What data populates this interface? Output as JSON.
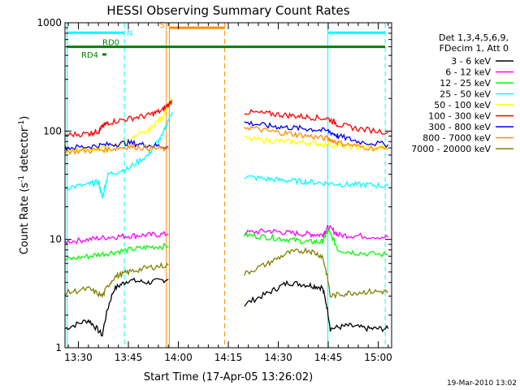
{
  "chart_data": {
    "type": "line",
    "title": "HESSI Observing Summary Count Rates",
    "xlabel": "Start Time (17-Apr-05 13:26:02)",
    "ylabel": "Count Rate (s⁻¹ detector⁻¹)",
    "ylabel_parts": {
      "base": "Count Rate (s",
      "sup1": "-1",
      "mid": " detector",
      "sup2": "-1",
      "end": ")"
    },
    "yscale": "log",
    "ylim": [
      1,
      1000
    ],
    "xlim_minutes": [
      13.433,
      15.067
    ],
    "x_ticks": [
      {
        "label": "13:30",
        "t": 13.5
      },
      {
        "label": "13:45",
        "t": 13.75
      },
      {
        "label": "14:00",
        "t": 14.0
      },
      {
        "label": "14:15",
        "t": 14.25
      },
      {
        "label": "14:30",
        "t": 14.5
      },
      {
        "label": "14:45",
        "t": 14.75
      },
      {
        "label": "15:00",
        "t": 15.0
      }
    ],
    "y_ticks": [
      {
        "label": "1",
        "v": 1
      },
      {
        "label": "10",
        "v": 10
      },
      {
        "label": "100",
        "v": 100
      },
      {
        "label": "1000",
        "v": 1000
      }
    ],
    "legend_header": [
      "Det 1,3,4,5,6,9,",
      "FDecim 1, Att 0"
    ],
    "series": [
      {
        "name": "3 - 6 keV",
        "color": "#000000",
        "points": [
          [
            13.433,
            1.5
          ],
          [
            13.55,
            1.8
          ],
          [
            13.62,
            1.3
          ],
          [
            13.68,
            3.5
          ],
          [
            13.75,
            4.2
          ],
          [
            13.85,
            4.0
          ],
          [
            13.95,
            4.3
          ],
          null,
          [
            14.33,
            2.5
          ],
          [
            14.45,
            3.2
          ],
          [
            14.55,
            4.0
          ],
          [
            14.65,
            3.8
          ],
          [
            14.72,
            3.6
          ],
          [
            14.76,
            1.5
          ],
          [
            14.85,
            1.6
          ],
          [
            14.95,
            1.5
          ],
          [
            15.05,
            1.5
          ]
        ]
      },
      {
        "name": "6 - 12 keV",
        "color": "#ff00ff",
        "points": [
          [
            13.433,
            9.5
          ],
          [
            13.55,
            10
          ],
          [
            13.65,
            10.5
          ],
          [
            13.75,
            10.8
          ],
          [
            13.85,
            11
          ],
          [
            13.95,
            11.2
          ],
          null,
          [
            14.33,
            11.5
          ],
          [
            14.45,
            12
          ],
          [
            14.55,
            11.5
          ],
          [
            14.65,
            11.2
          ],
          [
            14.72,
            11
          ],
          [
            14.75,
            13
          ],
          [
            14.8,
            11
          ],
          [
            14.9,
            10.8
          ],
          [
            15.05,
            10.5
          ]
        ]
      },
      {
        "name": "12 - 25 keV",
        "color": "#00ff00",
        "points": [
          [
            13.433,
            6.5
          ],
          [
            13.55,
            7
          ],
          [
            13.65,
            7.5
          ],
          [
            13.75,
            8
          ],
          [
            13.85,
            8.5
          ],
          [
            13.95,
            8.7
          ],
          null,
          [
            14.33,
            11
          ],
          [
            14.45,
            10.5
          ],
          [
            14.55,
            10
          ],
          [
            14.65,
            9.5
          ],
          [
            14.72,
            9.5
          ],
          [
            14.75,
            12
          ],
          [
            14.8,
            8
          ],
          [
            14.9,
            7.5
          ],
          [
            15.05,
            7.2
          ]
        ]
      },
      {
        "name": "25 - 50 keV",
        "color": "#00ffff",
        "points": [
          [
            13.433,
            30
          ],
          [
            13.55,
            32
          ],
          [
            13.6,
            34
          ],
          [
            13.62,
            24
          ],
          [
            13.65,
            40
          ],
          [
            13.75,
            45
          ],
          [
            13.85,
            60
          ],
          [
            13.92,
            90
          ],
          [
            13.97,
            150
          ],
          null,
          [
            14.33,
            38
          ],
          [
            14.45,
            36
          ],
          [
            14.55,
            35
          ],
          [
            14.65,
            34
          ],
          [
            14.75,
            33
          ],
          [
            14.85,
            32
          ],
          [
            14.95,
            32
          ],
          [
            15.05,
            31
          ]
        ]
      },
      {
        "name": "50 - 100 keV",
        "color": "#ffff00",
        "points": [
          [
            13.433,
            67
          ],
          [
            13.55,
            68
          ],
          [
            13.65,
            70
          ],
          [
            13.75,
            82
          ],
          [
            13.85,
            100
          ],
          [
            13.92,
            135
          ],
          [
            13.97,
            200
          ],
          null,
          [
            14.33,
            85
          ],
          [
            14.45,
            82
          ],
          [
            14.55,
            80
          ],
          [
            14.65,
            78
          ],
          [
            14.75,
            75
          ],
          [
            14.85,
            72
          ],
          [
            14.95,
            71
          ],
          [
            15.05,
            70
          ]
        ]
      },
      {
        "name": "100 - 300 keV",
        "color": "#ff0000",
        "points": [
          [
            13.433,
            92
          ],
          [
            13.55,
            95
          ],
          [
            13.6,
            100
          ],
          [
            13.62,
            110
          ],
          [
            13.65,
            120
          ],
          [
            13.75,
            130
          ],
          [
            13.85,
            140
          ],
          [
            13.92,
            155
          ],
          [
            13.97,
            190
          ],
          null,
          [
            14.33,
            150
          ],
          [
            14.45,
            145
          ],
          [
            14.55,
            140
          ],
          [
            14.65,
            135
          ],
          [
            14.75,
            130
          ],
          [
            14.8,
            115
          ],
          [
            14.9,
            105
          ],
          [
            15.05,
            98
          ]
        ]
      },
      {
        "name": "300 - 800 keV",
        "color": "#0000ff",
        "points": [
          [
            13.433,
            70
          ],
          [
            13.55,
            72
          ],
          [
            13.65,
            75
          ],
          [
            13.75,
            78
          ],
          [
            13.85,
            74
          ],
          [
            13.95,
            72
          ],
          null,
          [
            14.33,
            120
          ],
          [
            14.45,
            112
          ],
          [
            14.55,
            108
          ],
          [
            14.65,
            105
          ],
          [
            14.75,
            100
          ],
          [
            14.8,
            90
          ],
          [
            14.9,
            80
          ],
          [
            15.05,
            75
          ]
        ]
      },
      {
        "name": "800 - 7000 keV",
        "color": "#ff8c00",
        "points": [
          [
            13.433,
            65
          ],
          [
            13.55,
            66
          ],
          [
            13.65,
            68
          ],
          [
            13.75,
            72
          ],
          [
            13.85,
            70
          ],
          [
            13.95,
            68
          ],
          null,
          [
            14.33,
            110
          ],
          [
            14.45,
            100
          ],
          [
            14.55,
            95
          ],
          [
            14.65,
            90
          ],
          [
            14.75,
            85
          ],
          [
            14.8,
            78
          ],
          [
            14.9,
            72
          ],
          [
            15.05,
            68
          ]
        ]
      },
      {
        "name": "7000 - 20000 keV",
        "color": "#808000",
        "points": [
          [
            13.433,
            3.2
          ],
          [
            13.55,
            3.5
          ],
          [
            13.62,
            3.0
          ],
          [
            13.68,
            4.5
          ],
          [
            13.75,
            5.0
          ],
          [
            13.85,
            5.5
          ],
          [
            13.95,
            5.8
          ],
          null,
          [
            14.33,
            4.8
          ],
          [
            14.45,
            6.0
          ],
          [
            14.55,
            7.5
          ],
          [
            14.65,
            8.0
          ],
          [
            14.72,
            7.0
          ],
          [
            14.76,
            3.0
          ],
          [
            14.85,
            3.2
          ],
          [
            14.95,
            3.3
          ],
          [
            15.05,
            3.3
          ]
        ]
      }
    ],
    "vertical_markers": [
      {
        "t": 13.94,
        "color": "#ff8c00",
        "style": "solid"
      },
      {
        "t": 13.955,
        "color": "#ff8c00",
        "style": "solid"
      },
      {
        "t": 14.232,
        "color": "#ff8c00",
        "style": "dashed"
      },
      {
        "t": 13.444,
        "color": "#00ffff",
        "style": "solid"
      },
      {
        "t": 13.73,
        "color": "#00ffff",
        "style": "dashed"
      },
      {
        "t": 14.748,
        "color": "#00ffff",
        "style": "solid"
      },
      {
        "t": 15.035,
        "color": "#00ffff",
        "style": "dashed"
      }
    ],
    "flags": [
      {
        "label": "N",
        "color": "#00ffff",
        "segments": [
          [
            13.444,
            13.73
          ],
          [
            14.748,
            15.035
          ]
        ],
        "level": 810
      },
      {
        "label": "S",
        "color": "#ff8c00",
        "segments": [
          [
            13.955,
            14.232
          ]
        ],
        "level": 900
      },
      {
        "label": "RD0",
        "color": "#008000",
        "segments": [
          [
            13.444,
            15.035
          ]
        ],
        "level": 600
      },
      {
        "label": "RD4",
        "color": "#008000",
        "segments": [
          [
            13.62,
            13.64
          ]
        ],
        "level": 510
      }
    ]
  },
  "footer_date": "19-Mar-2010 13:02"
}
